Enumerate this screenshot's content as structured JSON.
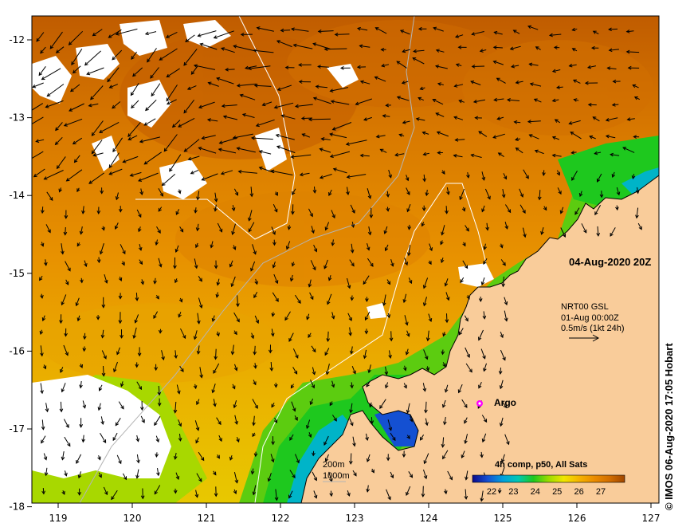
{
  "map": {
    "lon_ticks": [
      "119",
      "120",
      "121",
      "122",
      "123",
      "124",
      "125",
      "126",
      "127"
    ],
    "lat_ticks": [
      "-12",
      "-13",
      "-14",
      "-15",
      "-16",
      "-17",
      "-18"
    ],
    "date_label": "04-Aug-2020 20Z",
    "current_product": {
      "line1": "NRT00 GSL",
      "line2": "01-Aug 00:00Z",
      "line3": "0.5m/s (1kt 24h)"
    },
    "argo_label": "Argo",
    "isobaths": {
      "line1": "200m",
      "line2": "1000m"
    },
    "colorbar": {
      "title": "4h comp, p50, All Sats",
      "ticks": [
        "22",
        "23",
        "24",
        "25",
        "26",
        "27"
      ],
      "colors": [
        "#0a0a8c",
        "#1450d2",
        "#00a0dc",
        "#00c8b4",
        "#1ec81e",
        "#9bdc00",
        "#f0e600",
        "#f5b400",
        "#eb8c00",
        "#d26e00",
        "#a04600"
      ]
    },
    "credit": "© IMOS 06-Aug-2020 17:05 Hobart",
    "colors": {
      "land": "#f9cc9a",
      "cloud": "#ffffff",
      "coast": "#000000",
      "isobath": "#b4b4b4"
    }
  }
}
